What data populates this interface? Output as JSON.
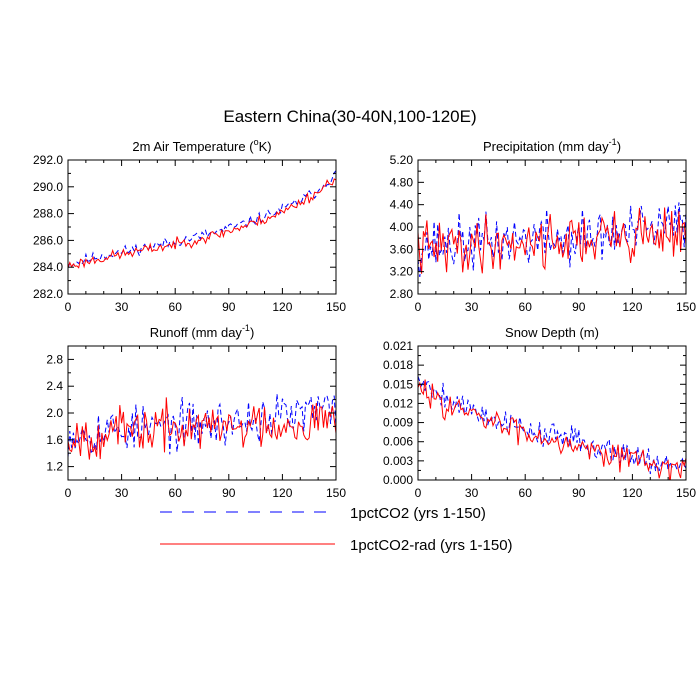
{
  "figure_title": "Eastern China(30-40N,100-120E)",
  "colors": {
    "series1": "#0000ff",
    "series2": "#ff0000",
    "axis": "#000000"
  },
  "legend": {
    "placement": "bottom-center",
    "items": [
      {
        "label": "1pctCO2 (yrs 1-150)",
        "style": "dashed",
        "color": "#0000ff"
      },
      {
        "label": "1pctCO2-rad (yrs 1-150)",
        "style": "solid",
        "color": "#ff0000"
      }
    ]
  },
  "chart_data": [
    {
      "type": "line",
      "title": "2m Air Temperature (°K)",
      "title_parts": [
        "2m Air Temperature (",
        "o",
        "K)"
      ],
      "xlim": [
        0,
        150
      ],
      "ylim": [
        282,
        292
      ],
      "xticks": [
        0,
        30,
        60,
        90,
        120,
        150
      ],
      "yticks": [
        282,
        284,
        286,
        288,
        290,
        292
      ],
      "ytick_labels": [
        "282.0",
        "284.0",
        "286.0",
        "288.0",
        "290.0",
        "292.0"
      ],
      "series": [
        {
          "kind": "anchors",
          "anchors": [
            [
              0,
              284.2
            ],
            [
              20,
              284.9
            ],
            [
              40,
              285.4
            ],
            [
              60,
              285.9
            ],
            [
              80,
              286.5
            ],
            [
              100,
              287.3
            ],
            [
              120,
              288.3
            ],
            [
              140,
              289.7
            ],
            [
              150,
              291.0
            ]
          ],
          "noise": 0.35,
          "seed": 11
        },
        {
          "kind": "anchors",
          "anchors": [
            [
              0,
              284.1
            ],
            [
              20,
              284.7
            ],
            [
              40,
              285.2
            ],
            [
              60,
              285.7
            ],
            [
              80,
              286.3
            ],
            [
              100,
              287.1
            ],
            [
              120,
              288.1
            ],
            [
              140,
              289.6
            ],
            [
              150,
              290.8
            ]
          ],
          "noise": 0.35,
          "seed": 23
        }
      ]
    },
    {
      "type": "line",
      "title": "Precipitation (mm day-1)",
      "title_parts": [
        "Precipitation (mm day",
        "-1",
        ")"
      ],
      "xlim": [
        0,
        150
      ],
      "ylim": [
        2.8,
        5.2
      ],
      "xticks": [
        0,
        30,
        60,
        90,
        120,
        150
      ],
      "yticks": [
        2.8,
        3.2,
        3.6,
        4.0,
        4.4,
        4.8,
        5.2
      ],
      "ytick_labels": [
        "2.80",
        "3.20",
        "3.60",
        "4.00",
        "4.40",
        "4.80",
        "5.20"
      ],
      "series": [
        {
          "kind": "anchors",
          "anchors": [
            [
              0,
              3.65
            ],
            [
              30,
              3.72
            ],
            [
              60,
              3.78
            ],
            [
              90,
              3.8
            ],
            [
              120,
              3.9
            ],
            [
              150,
              4.05
            ]
          ],
          "noise": 0.42,
          "seed": 37
        },
        {
          "kind": "anchors",
          "anchors": [
            [
              0,
              3.6
            ],
            [
              30,
              3.68
            ],
            [
              60,
              3.75
            ],
            [
              90,
              3.78
            ],
            [
              120,
              3.85
            ],
            [
              150,
              3.95
            ]
          ],
          "noise": 0.42,
          "seed": 41
        }
      ]
    },
    {
      "type": "line",
      "title": "Runoff (mm day-1)",
      "title_parts": [
        "Runoff (mm day",
        "-1",
        ")"
      ],
      "xlim": [
        0,
        150
      ],
      "ylim": [
        1.0,
        3.0
      ],
      "xticks": [
        0,
        30,
        60,
        90,
        120,
        150
      ],
      "yticks": [
        1.2,
        1.6,
        2.0,
        2.4,
        2.8
      ],
      "ytick_labels": [
        "1.2",
        "1.6",
        "2.0",
        "2.4",
        "2.8"
      ],
      "series": [
        {
          "kind": "anchors",
          "anchors": [
            [
              0,
              1.7
            ],
            [
              30,
              1.75
            ],
            [
              60,
              1.8
            ],
            [
              90,
              1.85
            ],
            [
              120,
              1.95
            ],
            [
              150,
              2.05
            ]
          ],
          "noise": 0.3,
          "seed": 53
        },
        {
          "kind": "anchors",
          "anchors": [
            [
              0,
              1.65
            ],
            [
              30,
              1.72
            ],
            [
              60,
              1.78
            ],
            [
              90,
              1.8
            ],
            [
              120,
              1.85
            ],
            [
              150,
              1.9
            ]
          ],
          "noise": 0.3,
          "seed": 67
        }
      ]
    },
    {
      "type": "line",
      "title": "Snow Depth (m)",
      "title_parts": [
        "Snow Depth (m)"
      ],
      "xlim": [
        0,
        150
      ],
      "ylim": [
        0.0,
        0.021
      ],
      "xticks": [
        0,
        30,
        60,
        90,
        120,
        150
      ],
      "yticks": [
        0.0,
        0.003,
        0.006,
        0.009,
        0.012,
        0.015,
        0.018,
        0.021
      ],
      "ytick_labels": [
        "0.000",
        "0.003",
        "0.006",
        "0.009",
        "0.012",
        "0.015",
        "0.018",
        "0.021"
      ],
      "series": [
        {
          "kind": "anchors",
          "anchors": [
            [
              0,
              0.016
            ],
            [
              10,
              0.014
            ],
            [
              30,
              0.011
            ],
            [
              60,
              0.008
            ],
            [
              90,
              0.006
            ],
            [
              120,
              0.004
            ],
            [
              140,
              0.0025
            ],
            [
              150,
              0.0015
            ]
          ],
          "noise": 0.0018,
          "seed": 79
        },
        {
          "kind": "anchors",
          "anchors": [
            [
              0,
              0.014
            ],
            [
              10,
              0.013
            ],
            [
              30,
              0.01
            ],
            [
              60,
              0.0075
            ],
            [
              90,
              0.0055
            ],
            [
              120,
              0.0035
            ],
            [
              140,
              0.002
            ],
            [
              150,
              0.0012
            ]
          ],
          "noise": 0.0018,
          "seed": 83
        }
      ]
    }
  ]
}
